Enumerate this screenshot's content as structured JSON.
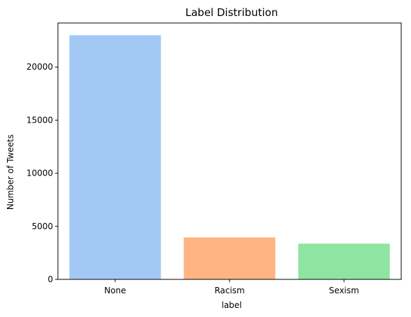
{
  "chart_data": {
    "type": "bar",
    "title": "Label Distribution",
    "xlabel": "label",
    "ylabel": "Number of Tweets",
    "categories": [
      "None",
      "Racism",
      "Sexism"
    ],
    "values": [
      23000,
      3950,
      3370
    ],
    "colors": [
      "#a1c9f4",
      "#ffb482",
      "#8de5a1"
    ],
    "ylim": [
      0,
      24150
    ],
    "yticks": [
      0,
      5000,
      10000,
      15000,
      20000
    ],
    "yticks_labels": [
      "0",
      "5000",
      "10000",
      "15000",
      "20000"
    ],
    "grid": false,
    "legend": "none"
  }
}
